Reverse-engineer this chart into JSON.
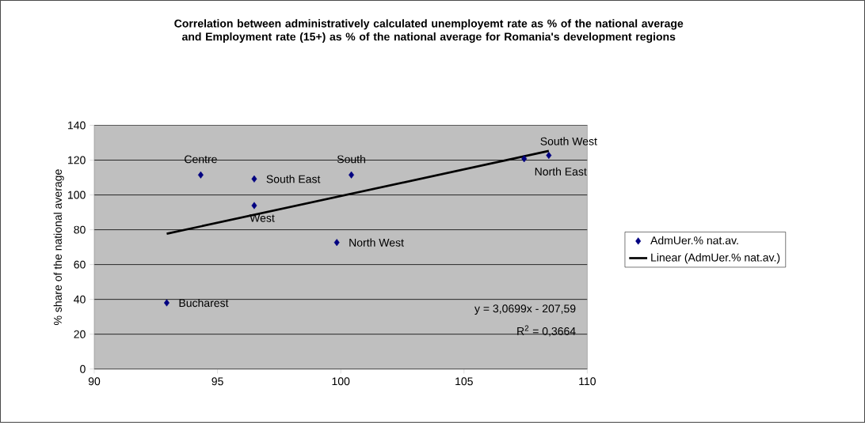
{
  "chart_data": {
    "type": "scatter",
    "title": "Correlation between administratively calculated unemployemt rate as % of the national average and Employment rate (15+) as % of the national average for Romania's development regions",
    "ylabel": "% share of the national average",
    "series": [
      {
        "name": "AdmUer.% nat.av.",
        "color": "#000080",
        "marker": "diamond",
        "x": [
          92.94,
          94.32,
          96.49,
          96.49,
          99.84,
          100.43,
          107.44,
          108.44
        ],
        "values": [
          38.0,
          111.5,
          109.2,
          93.9,
          72.7,
          111.5,
          120.8,
          122.7
        ]
      },
      {
        "name": "Linear (AdmUer.% nat.av.)",
        "type": "line",
        "color": "#000000",
        "marker": "none",
        "x": [
          92.94,
          108.44
        ],
        "values": [
          77.7,
          125.3
        ]
      }
    ],
    "annotations": [
      {
        "text": "Bucharest",
        "x": 92.94,
        "y": 38.0
      },
      {
        "text": "Centre",
        "x": 94.32,
        "y": 111.5
      },
      {
        "text": "South East",
        "x": 96.49,
        "y": 109.2
      },
      {
        "text": "West",
        "x": 96.49,
        "y": 93.9
      },
      {
        "text": "North West",
        "x": 99.84,
        "y": 72.7
      },
      {
        "text": "South",
        "x": 100.43,
        "y": 111.5
      },
      {
        "text": "North East",
        "x": 107.44,
        "y": 120.8
      },
      {
        "text": "South West",
        "x": 108.44,
        "y": 122.7
      },
      "y = 3,0699x - 207,59",
      "R$^{2}$ = 0,3664"
    ],
    "xlim": [
      90,
      110
    ],
    "xticks": [
      90,
      95,
      100,
      105,
      110
    ],
    "ylim": [
      0,
      140
    ],
    "yticks": [
      0,
      20,
      40,
      60,
      80,
      100,
      120,
      140
    ],
    "grid": "y",
    "legend": "right"
  }
}
